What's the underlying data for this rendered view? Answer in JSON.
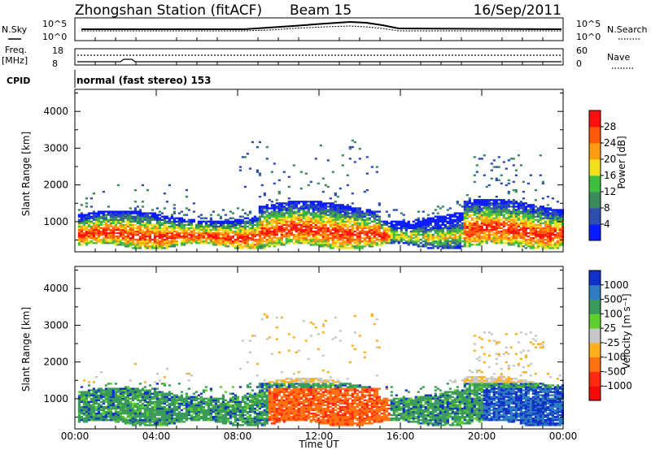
{
  "header": {
    "title": "Zhongshan Station (fitACF)",
    "beam": "Beam 15",
    "date": "16/Sep/2011"
  },
  "noise_panel": {
    "left_label": "N.Sky",
    "right_label": "N.Search",
    "left_ticks": [
      "10^5",
      "10^0"
    ],
    "right_ticks": [
      "10^5",
      "10^0"
    ]
  },
  "freq_panel": {
    "left_label": "Freq.",
    "left_unit": "[MHz]",
    "right_label": "Nave",
    "left_ticks": [
      "18",
      "8"
    ],
    "right_ticks": [
      "60",
      "0"
    ]
  },
  "cpid": {
    "label": "CPID",
    "text": "normal (fast stereo) 153"
  },
  "chart_data": [
    {
      "type": "heatmap",
      "name": "power",
      "ylabel": "Slant Range [km]",
      "ylim": [
        180,
        4600
      ],
      "yticks": [
        1000,
        2000,
        3000,
        4000
      ],
      "xlim": [
        0,
        24
      ],
      "colorbar_label": "Power [dB]",
      "colorbar_ticks": [
        "4",
        "8",
        "12",
        "16",
        "20",
        "24",
        "28"
      ],
      "colorbar_colors": [
        "#0b1bff",
        "#2e4fb0",
        "#3d8a5e",
        "#3fbf3f",
        "#f2e01e",
        "#ff9a14",
        "#ff5a0a",
        "#ff1010"
      ],
      "features": [
        {
          "label": "main echo band",
          "x": [
            0,
            24
          ],
          "y": [
            300,
            1200
          ],
          "level": "high"
        },
        {
          "label": "far range scatter",
          "x": [
            8,
            15
          ],
          "y": [
            1200,
            3300
          ],
          "level": "low"
        },
        {
          "label": "far range scatter",
          "x": [
            20,
            23
          ],
          "y": [
            1500,
            2800
          ],
          "level": "low"
        }
      ]
    },
    {
      "type": "heatmap",
      "name": "velocity",
      "ylabel": "Slant Range [km]",
      "ylim": [
        180,
        4600
      ],
      "yticks": [
        1000,
        2000,
        3000,
        4000
      ],
      "xlim": [
        0,
        24
      ],
      "xticks": [
        "00:00",
        "04:00",
        "08:00",
        "12:00",
        "16:00",
        "20:00",
        "00:00"
      ],
      "xlabel": "Time UT",
      "colorbar_label": "Velocity [m s⁻¹]",
      "colorbar_ticks": [
        "1000",
        "500",
        "100",
        "25",
        "-25",
        "-100",
        "-500",
        "-1000"
      ],
      "colorbar_colors": [
        "#1030c8",
        "#2f7cc0",
        "#3a9a5a",
        "#5fcf30",
        "#c8c8c8",
        "#ffb020",
        "#ff7010",
        "#ff2a10",
        "#f00a0a"
      ]
    }
  ]
}
